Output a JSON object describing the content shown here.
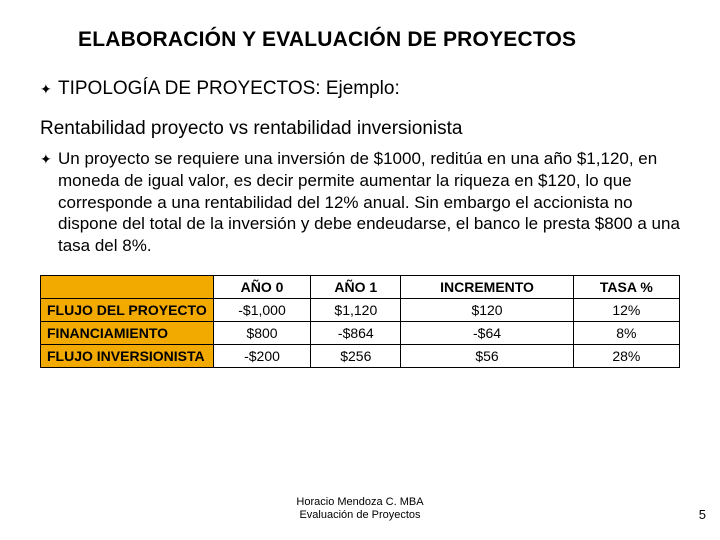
{
  "title": "ELABORACIÓN Y EVALUACIÓN DE PROYECTOS",
  "subtitle": "TIPOLOGÍA DE PROYECTOS: Ejemplo:",
  "section_heading": "Rentabilidad proyecto vs rentabilidad inversionista",
  "body": "Un proyecto se requiere una inversión de $1000, reditúa en una año $1,120, en moneda de igual valor, es decir permite aumentar la riqueza en $120, lo que corresponde a una rentabilidad del 12% anual. Sin embargo el accionista no dispone del total de la inversión y debe endeudarse, el banco le presta $800 a una tasa del 8%.",
  "table": {
    "header_bg": "#f2a900",
    "border_color": "#000000",
    "columns": [
      "AÑO 0",
      "AÑO 1",
      "INCREMENTO",
      "TASA %"
    ],
    "rows": [
      {
        "label": "FLUJO DEL PROYECTO",
        "cells": [
          "-$1,000",
          "$1,120",
          "$120",
          "12%"
        ]
      },
      {
        "label": "FINANCIAMIENTO",
        "cells": [
          "$800",
          "-$864",
          "-$64",
          "8%"
        ]
      },
      {
        "label": "FLUJO INVERSIONISTA",
        "cells": [
          "-$200",
          "$256",
          "$56",
          "28%"
        ]
      }
    ]
  },
  "footer_line1": "Horacio Mendoza C. MBA",
  "footer_line2": "Evaluación de Proyectos",
  "page_number": "5",
  "bullet_glyph": "✦"
}
